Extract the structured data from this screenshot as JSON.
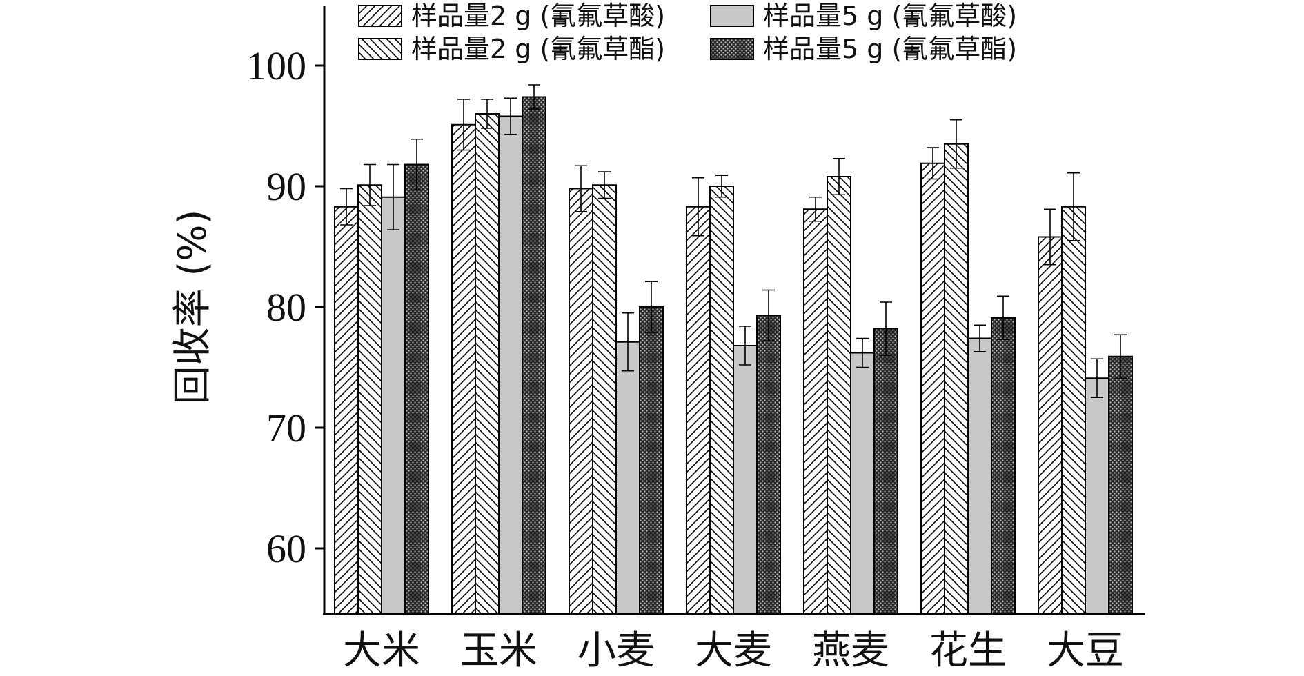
{
  "chart_data": {
    "type": "bar",
    "title": "",
    "xlabel": "",
    "ylabel": "回收率 (%)",
    "ylim": [
      55,
      105
    ],
    "yticks": [
      60,
      70,
      80,
      90,
      100
    ],
    "categories": [
      "大米",
      "玉米",
      "小麦",
      "大麦",
      "燕麦",
      "花生",
      "大豆"
    ],
    "legend_position": "top",
    "series": [
      {
        "name": "样品量2 g (氰氟草酸)",
        "pattern": "hatch-fwd",
        "color": "#ffffff",
        "values": [
          88.3,
          95.1,
          89.8,
          88.3,
          88.1,
          91.9,
          85.8
        ],
        "errors": [
          1.5,
          2.1,
          1.9,
          2.4,
          1.0,
          1.3,
          2.3
        ]
      },
      {
        "name": "样品量2 g (氰氟草酯)",
        "pattern": "hatch-back",
        "color": "#ffffff",
        "values": [
          90.1,
          96.0,
          90.1,
          90.0,
          90.8,
          93.5,
          88.3
        ],
        "errors": [
          1.7,
          1.2,
          1.1,
          0.9,
          1.5,
          2.0,
          2.8
        ]
      },
      {
        "name": "样品量5 g (氰氟草酸)",
        "pattern": "solid",
        "color": "#c8c8c8",
        "values": [
          89.1,
          95.8,
          77.1,
          76.8,
          76.2,
          77.4,
          74.1
        ],
        "errors": [
          2.7,
          1.5,
          2.4,
          1.6,
          1.2,
          1.1,
          1.6
        ]
      },
      {
        "name": "样品量5 g (氰氟草酯)",
        "pattern": "dots",
        "color": "#555555",
        "values": [
          91.8,
          97.4,
          80.0,
          79.3,
          78.2,
          79.1,
          75.9
        ],
        "errors": [
          2.1,
          1.0,
          2.1,
          2.1,
          2.2,
          1.8,
          1.8
        ]
      }
    ]
  }
}
